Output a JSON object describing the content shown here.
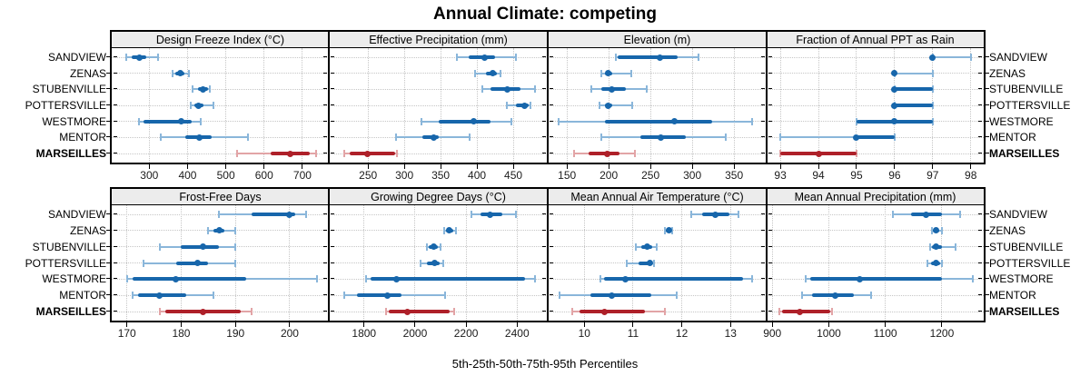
{
  "title": "Annual Climate: competing",
  "caption": "5th-25th-50th-75th-95th Percentiles",
  "locations": [
    "SANDVIEW",
    "ZENAS",
    "STUBENVILLE",
    "POTTERSVILLE",
    "WESTMORE",
    "MENTOR",
    "MARSEILLES"
  ],
  "highlight_location": "MARSEILLES",
  "colors": {
    "series": "#1766ab",
    "series_light": "#8ab6da",
    "highlight": "#ae2029",
    "highlight_light": "#e2a4a6",
    "gridline": "#c6c6c6",
    "strip_bg": "#ececec",
    "border": "#000000"
  },
  "chart_data": [
    {
      "type": "scatter",
      "title": "Design Freeze Index (°C)",
      "x_ticks": [
        300,
        400,
        500,
        600,
        700
      ],
      "xlim": [
        202,
        769
      ],
      "percentile_labels": [
        5,
        25,
        50,
        75,
        95
      ],
      "series": [
        {
          "name": "SANDVIEW",
          "values": [
            239,
            255,
            274,
            291,
            323
          ]
        },
        {
          "name": "ZENAS",
          "values": [
            360,
            369,
            380,
            391,
            404
          ]
        },
        {
          "name": "STUBENVILLE",
          "values": [
            413,
            427,
            441,
            453,
            458
          ]
        },
        {
          "name": "POTTERSVILLE",
          "values": [
            409,
            417,
            428,
            441,
            468
          ]
        },
        {
          "name": "WESTMORE",
          "values": [
            273,
            286,
            384,
            410,
            435
          ]
        },
        {
          "name": "MENTOR",
          "values": [
            329,
            393,
            430,
            464,
            557
          ]
        },
        {
          "name": "MARSEILLES",
          "values": [
            530,
            616,
            669,
            719,
            736
          ]
        }
      ]
    },
    {
      "type": "scatter",
      "title": "Effective Precipitation (mm)",
      "x_ticks": [
        250,
        300,
        350,
        400,
        450
      ],
      "xlim": [
        196,
        497.5
      ],
      "percentile_labels": [
        5,
        25,
        50,
        75,
        95
      ],
      "series": [
        {
          "name": "SANDVIEW",
          "values": [
            372,
            389,
            410,
            425,
            454
          ]
        },
        {
          "name": "ZENAS",
          "values": [
            398,
            412,
            422,
            428,
            432
          ]
        },
        {
          "name": "STUBENVILLE",
          "values": [
            407,
            419,
            442,
            460,
            480
          ]
        },
        {
          "name": "POTTERSVILLE",
          "values": [
            441,
            454,
            465,
            471,
            474
          ]
        },
        {
          "name": "WESTMORE",
          "values": [
            323,
            348,
            396,
            419,
            447
          ]
        },
        {
          "name": "MENTOR",
          "values": [
            289,
            325,
            340,
            347,
            390
          ]
        },
        {
          "name": "MARSEILLES",
          "values": [
            217,
            225,
            249,
            287,
            290
          ]
        }
      ]
    },
    {
      "type": "scatter",
      "title": "Elevation (m)",
      "x_ticks": [
        150,
        200,
        250,
        300,
        350
      ],
      "xlim": [
        127,
        389
      ],
      "percentile_labels": [
        5,
        25,
        50,
        75,
        95
      ],
      "series": [
        {
          "name": "SANDVIEW",
          "values": [
            208,
            211,
            261,
            283,
            307
          ]
        },
        {
          "name": "ZENAS",
          "values": [
            191,
            195,
            199,
            204,
            227
          ]
        },
        {
          "name": "STUBENVILLE",
          "values": [
            179,
            191,
            204,
            220,
            245
          ]
        },
        {
          "name": "POTTERSVILLE",
          "values": [
            189,
            195,
            199,
            204,
            228
          ]
        },
        {
          "name": "WESTMORE",
          "values": [
            140,
            196,
            279,
            324,
            372
          ]
        },
        {
          "name": "MENTOR",
          "values": [
            191,
            238,
            262,
            292,
            340
          ]
        },
        {
          "name": "MARSEILLES",
          "values": [
            158,
            176,
            198,
            213,
            231
          ]
        }
      ]
    },
    {
      "type": "scatter",
      "title": "Fraction of Annual PPT as Rain",
      "x_ticks": [
        93,
        94,
        95,
        96,
        97,
        98
      ],
      "xlim": [
        92.64,
        98.34
      ],
      "percentile_labels": [
        5,
        25,
        50,
        75,
        95
      ],
      "series": [
        {
          "name": "SANDVIEW",
          "values": [
            97,
            97,
            97,
            97,
            98
          ]
        },
        {
          "name": "ZENAS",
          "values": [
            96,
            96,
            96,
            96,
            97
          ]
        },
        {
          "name": "STUBENVILLE",
          "values": [
            96,
            96,
            96,
            97,
            97
          ]
        },
        {
          "name": "POTTERSVILLE",
          "values": [
            96,
            96,
            96,
            97,
            97
          ]
        },
        {
          "name": "WESTMORE",
          "values": [
            95,
            95,
            96,
            97,
            97
          ]
        },
        {
          "name": "MENTOR",
          "values": [
            93,
            95,
            95,
            96,
            96
          ]
        },
        {
          "name": "MARSEILLES",
          "values": [
            93,
            93,
            94,
            95,
            95
          ]
        }
      ]
    },
    {
      "type": "scatter",
      "title": "Frost-Free Days",
      "x_ticks": [
        170,
        180,
        190,
        200
      ],
      "xlim": [
        167.2,
        207.2
      ],
      "percentile_labels": [
        5,
        25,
        50,
        75,
        95
      ],
      "series": [
        {
          "name": "SANDVIEW",
          "values": [
            187,
            193,
            200,
            201,
            203
          ]
        },
        {
          "name": "ZENAS",
          "values": [
            185,
            186,
            187,
            188,
            190
          ]
        },
        {
          "name": "STUBENVILLE",
          "values": [
            176,
            180,
            184,
            187,
            190
          ]
        },
        {
          "name": "POTTERSVILLE",
          "values": [
            173,
            179,
            183,
            185,
            190
          ]
        },
        {
          "name": "WESTMORE",
          "values": [
            170,
            171,
            179,
            192,
            205
          ]
        },
        {
          "name": "MENTOR",
          "values": [
            171,
            172,
            176,
            181,
            186
          ]
        },
        {
          "name": "MARSEILLES",
          "values": [
            176,
            177,
            184,
            191,
            193
          ]
        }
      ]
    },
    {
      "type": "scatter",
      "title": "Growing Degree Days (°C)",
      "x_ticks": [
        1800,
        2000,
        2200,
        2400
      ],
      "xlim": [
        1662,
        2520
      ],
      "percentile_labels": [
        5,
        25,
        50,
        75,
        95
      ],
      "series": [
        {
          "name": "SANDVIEW",
          "values": [
            2220,
            2257,
            2295,
            2343,
            2396
          ]
        },
        {
          "name": "ZENAS",
          "values": [
            2115,
            2123,
            2135,
            2151,
            2159
          ]
        },
        {
          "name": "STUBENVILLE",
          "values": [
            2046,
            2055,
            2073,
            2088,
            2100
          ]
        },
        {
          "name": "POTTERSVILLE",
          "values": [
            2020,
            2046,
            2076,
            2096,
            2109
          ]
        },
        {
          "name": "WESTMORE",
          "values": [
            1809,
            1827,
            1928,
            2432,
            2471
          ]
        },
        {
          "name": "MENTOR",
          "values": [
            1721,
            1774,
            1892,
            1946,
            2118
          ]
        },
        {
          "name": "MARSEILLES",
          "values": [
            1886,
            1898,
            1969,
            2135,
            2153
          ]
        }
      ]
    },
    {
      "type": "scatter",
      "title": "Mean Annual Air Temperature (°C)",
      "x_ticks": [
        10,
        11,
        12,
        13
      ],
      "xlim": [
        9.25,
        13.74
      ],
      "percentile_labels": [
        5,
        25,
        50,
        75,
        95
      ],
      "series": [
        {
          "name": "SANDVIEW",
          "values": [
            12.2,
            12.42,
            12.69,
            12.98,
            13.17
          ]
        },
        {
          "name": "ZENAS",
          "values": [
            11.65,
            11.68,
            11.73,
            11.77,
            11.8
          ]
        },
        {
          "name": "STUBENVILLE",
          "values": [
            11.06,
            11.17,
            11.29,
            11.4,
            11.48
          ]
        },
        {
          "name": "POTTERSVILLE",
          "values": [
            10.88,
            11.12,
            11.34,
            11.4,
            11.43
          ]
        },
        {
          "name": "WESTMORE",
          "values": [
            10.33,
            10.4,
            10.84,
            13.26,
            13.45
          ]
        },
        {
          "name": "MENTOR",
          "values": [
            9.5,
            10.12,
            10.57,
            11.37,
            11.89
          ]
        },
        {
          "name": "MARSEILLES",
          "values": [
            9.75,
            9.91,
            10.41,
            11.24,
            11.65
          ]
        }
      ]
    },
    {
      "type": "scatter",
      "title": "Mean Annual Precipitation (mm)",
      "x_ticks": [
        900,
        1000,
        1100,
        1200
      ],
      "xlim": [
        890,
        1274
      ],
      "percentile_labels": [
        5,
        25,
        50,
        75,
        95
      ],
      "series": [
        {
          "name": "SANDVIEW",
          "values": [
            1113,
            1146,
            1172,
            1200,
            1232
          ]
        },
        {
          "name": "ZENAS",
          "values": [
            1182,
            1184,
            1189,
            1195,
            1200
          ]
        },
        {
          "name": "STUBENVILLE",
          "values": [
            1179,
            1183,
            1190,
            1200,
            1224
          ]
        },
        {
          "name": "POTTERSVILLE",
          "values": [
            1175,
            1181,
            1190,
            1197,
            1200
          ]
        },
        {
          "name": "WESTMORE",
          "values": [
            959,
            967,
            1055,
            1200,
            1254
          ]
        },
        {
          "name": "MENTOR",
          "values": [
            953,
            970,
            1011,
            1045,
            1074
          ]
        },
        {
          "name": "MARSEILLES",
          "values": [
            913,
            917,
            948,
            1003,
            1006
          ]
        }
      ]
    }
  ]
}
